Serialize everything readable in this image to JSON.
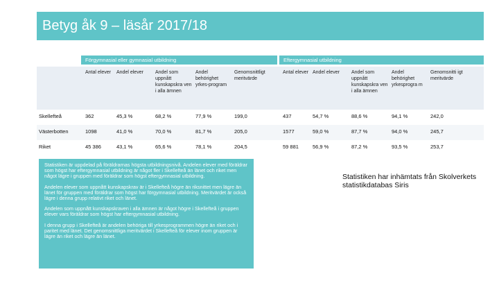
{
  "title": "Betyg åk 9 – läsår 2017/18",
  "groups": {
    "pre": "Förgymnasial eller gymnasial utbildning",
    "post": "Eftergymnasial utbildning"
  },
  "columns": [
    "Antal elever",
    "Andel elever",
    "Andel som uppnått kunskapskra ven i alla ämnen",
    "Andel behörighet yrkes-program",
    "Genomsnittligt meritvärde",
    "Antal elever",
    "Andel elever",
    "Andel som uppnått kunskapskra ven i alla ämnen",
    "Andel behörighet yrkesprogra m",
    "Genomsnitti igt meritvärde"
  ],
  "rows": [
    {
      "label": "Skellefteå",
      "values": [
        "362",
        "45,3 %",
        "68,2 %",
        "77,9 %",
        "199,0",
        "437",
        "54,7 %",
        "88,6 %",
        "94,1 %",
        "242,0"
      ]
    },
    {
      "label": "Västerbotten",
      "values": [
        "1098",
        "41,0 %",
        "70,0 %",
        "81,7 %",
        "205,0",
        "1577",
        "59,0 %",
        "87,7 %",
        "94,0 %",
        "245,7"
      ]
    },
    {
      "label": "Riket",
      "values": [
        "45 386",
        "43,1 %",
        "65,6 %",
        "78,1 %",
        "204,5",
        "59 881",
        "56,9 %",
        "87,2 %",
        "93,5 %",
        "253,7"
      ]
    }
  ],
  "notes": [
    "Statistiken är uppdelad på föräldrarnas högsta utbildningsnivå. Andelen elever med föräldrar som högst har eftergymnasial utbildning är något fler i Skellefteå än länet och riket men något lägre i gruppen med föräldrar som högst eftergymnasial utbildning.",
    "Andelen elever som uppnått kunskapskrav är i Skellefteå högre än riksnittet men lägre än länet för gruppen med föräldrar som högst har förgymnasial utbildning. Meritvärdet är också lägre i denna grupp relativt riket och länet.",
    "Andelen som uppnått kunskapskraven i alla ämnen är något högre i Skellefteå i gruppen elever vars föräldrar som högst har eftergymnasial utbildning.",
    "I denna grupp i Skellefteå är andelen behöriga till yrkesprogrammen högre än riket och i paritet med länet. Det genomsnittliga meritvärdet i Skellefteå för elever inom gruppen är lägre än riket och lägre än länet."
  ],
  "source": "Statistiken har inhämtats från Skolverkets statistikdatabas Siris",
  "colors": {
    "accent": "#5fc4c8",
    "strip": "#e9eef4",
    "rowAlt": "#f3f6f9"
  }
}
